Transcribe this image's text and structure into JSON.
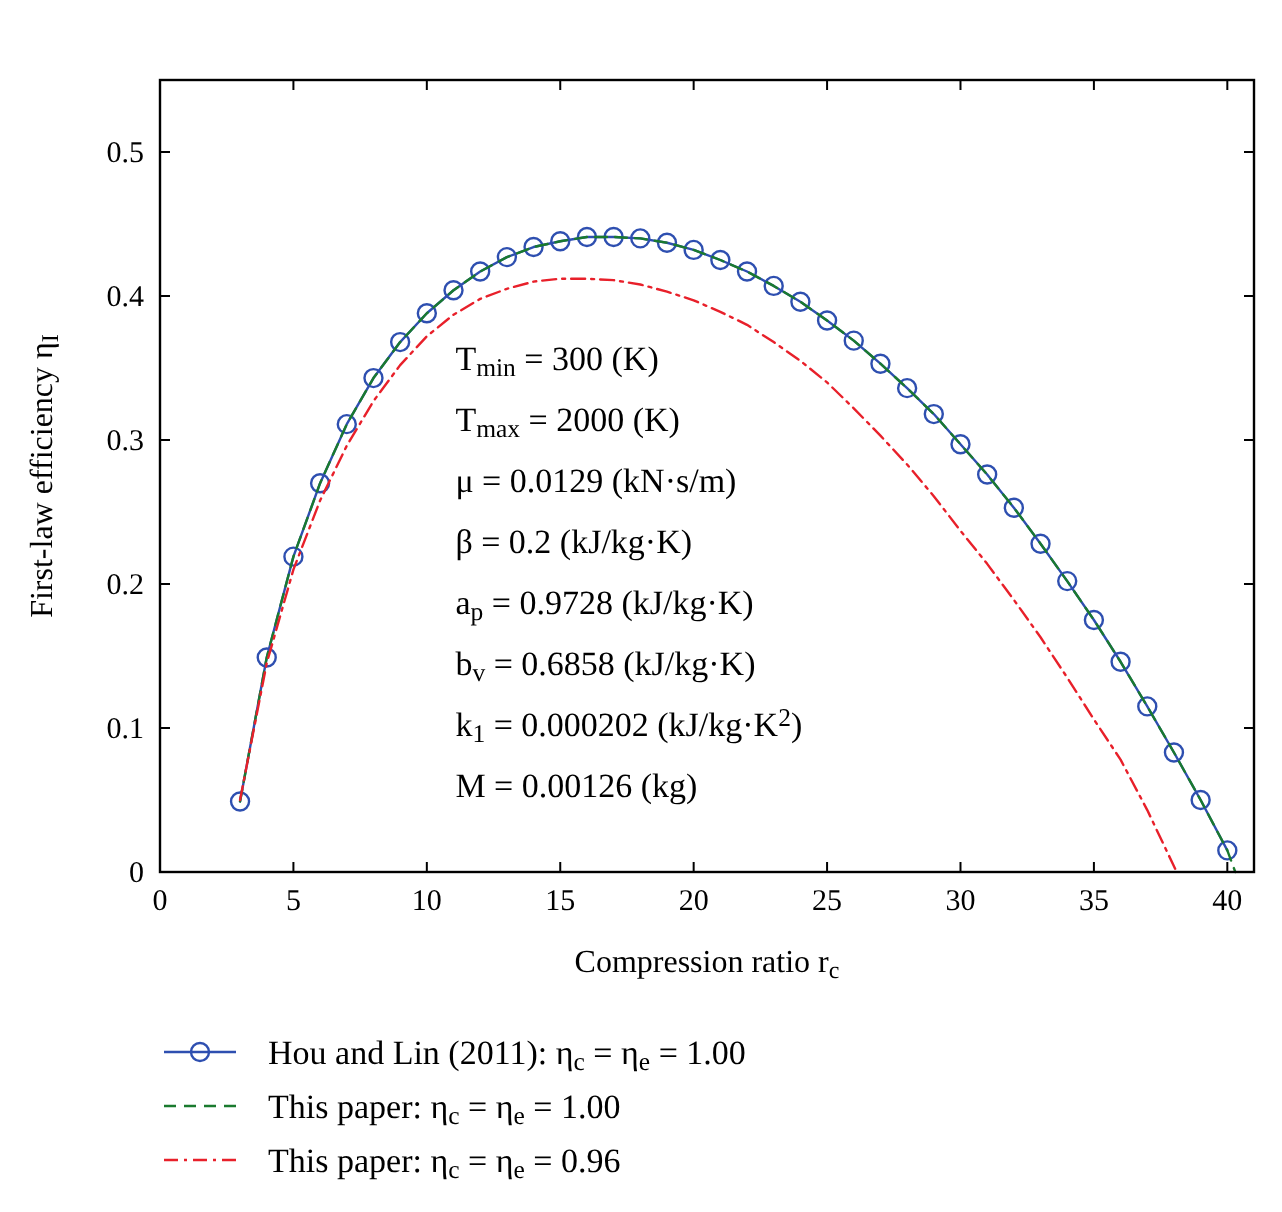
{
  "chart_data": {
    "type": "line",
    "xlabel": "Compression ratio r$_{c}$",
    "ylabel": "First-law efficiency η$_{I}$",
    "xlim": [
      0,
      41
    ],
    "ylim": [
      0,
      0.55
    ],
    "xticks": [
      0,
      5,
      10,
      15,
      20,
      25,
      30,
      35,
      40
    ],
    "yticks": [
      0,
      0.1,
      0.2,
      0.3,
      0.4,
      0.5
    ],
    "grid": false,
    "legend": "bottom",
    "annotations": [
      "T$_{min}$ = 300 (K)",
      "T$_{max}$ = 2000 (K)",
      "μ = 0.0129 (kN·s/m)",
      "β = 0.2 (kJ/kg·K)",
      "a$_{p}$ = 0.9728 (kJ/kg·K)",
      "b$_{v}$ = 0.6858 (kJ/kg·K)",
      "k$_{1}$ = 0.000202 (kJ/kg·K$^{2}$)",
      "M = 0.00126 (kg)"
    ],
    "series": [
      {
        "name": "Hou and Lin (2011): η$_{c}$ = η$_{e}$ = 1.00",
        "color": "#2e4fb0",
        "marker": "circle",
        "line_style": "solid",
        "x": [
          3,
          4,
          5,
          6,
          7,
          8,
          9,
          10,
          11,
          12,
          13,
          14,
          15,
          16,
          17,
          18,
          19,
          20,
          21,
          22,
          23,
          24,
          25,
          26,
          27,
          28,
          29,
          30,
          31,
          32,
          33,
          34,
          35,
          36,
          37,
          38,
          39,
          40
        ],
        "values": [
          0.049,
          0.149,
          0.219,
          0.27,
          0.311,
          0.343,
          0.368,
          0.388,
          0.404,
          0.417,
          0.427,
          0.434,
          0.438,
          0.441,
          0.441,
          0.44,
          0.437,
          0.432,
          0.425,
          0.417,
          0.407,
          0.396,
          0.383,
          0.369,
          0.353,
          0.336,
          0.318,
          0.297,
          0.276,
          0.253,
          0.228,
          0.202,
          0.175,
          0.146,
          0.115,
          0.083,
          0.05,
          0.015
        ]
      },
      {
        "name": "This paper: η$_{c}$ = η$_{e}$ = 1.00",
        "color": "#1a7a2e",
        "marker": "none",
        "line_style": "dashed",
        "x": [
          3,
          4,
          5,
          6,
          7,
          8,
          9,
          10,
          11,
          12,
          13,
          14,
          15,
          16,
          17,
          18,
          19,
          20,
          21,
          22,
          23,
          24,
          25,
          26,
          27,
          28,
          29,
          30,
          31,
          32,
          33,
          34,
          35,
          36,
          37,
          38,
          39,
          40,
          40.3
        ],
        "values": [
          0.049,
          0.149,
          0.219,
          0.27,
          0.311,
          0.343,
          0.368,
          0.388,
          0.404,
          0.417,
          0.427,
          0.434,
          0.438,
          0.441,
          0.441,
          0.44,
          0.437,
          0.432,
          0.425,
          0.417,
          0.407,
          0.396,
          0.383,
          0.369,
          0.353,
          0.336,
          0.318,
          0.297,
          0.276,
          0.253,
          0.228,
          0.202,
          0.175,
          0.146,
          0.115,
          0.083,
          0.05,
          0.015,
          0
        ]
      },
      {
        "name": "This paper: η$_{c}$ = η$_{e}$ = 0.96",
        "color": "#e8202a",
        "marker": "none",
        "line_style": "dashdot",
        "x": [
          3,
          4,
          5,
          6,
          7,
          8,
          9,
          10,
          11,
          12,
          13,
          14,
          15,
          16,
          17,
          18,
          19,
          20,
          21,
          22,
          23,
          24,
          25,
          26,
          27,
          28,
          29,
          30,
          31,
          32,
          33,
          34,
          35,
          36,
          37,
          38,
          38.1
        ],
        "values": [
          0.05,
          0.145,
          0.21,
          0.258,
          0.296,
          0.327,
          0.352,
          0.372,
          0.387,
          0.398,
          0.405,
          0.41,
          0.412,
          0.412,
          0.411,
          0.408,
          0.403,
          0.397,
          0.389,
          0.38,
          0.368,
          0.355,
          0.34,
          0.322,
          0.303,
          0.283,
          0.261,
          0.237,
          0.214,
          0.189,
          0.163,
          0.135,
          0.106,
          0.078,
          0.043,
          0.004,
          0
        ]
      }
    ]
  }
}
